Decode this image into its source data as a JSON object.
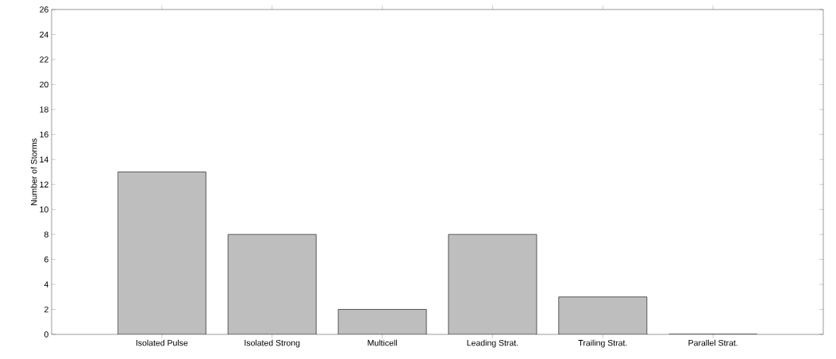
{
  "chart_data": {
    "type": "bar",
    "ylabel": "Number of Storms",
    "categories": [
      "Isolated Pulse",
      "Isolated Strong",
      "Multicell",
      "Leading Strat.",
      "Trailing Strat.",
      "Parallel Strat."
    ],
    "values": [
      13,
      8,
      2,
      8,
      3,
      0
    ],
    "color": "#bebebe",
    "ylim": [
      0,
      26
    ],
    "yticks": [
      0,
      2,
      4,
      6,
      8,
      10,
      12,
      14,
      16,
      18,
      20,
      22,
      24,
      26
    ]
  }
}
